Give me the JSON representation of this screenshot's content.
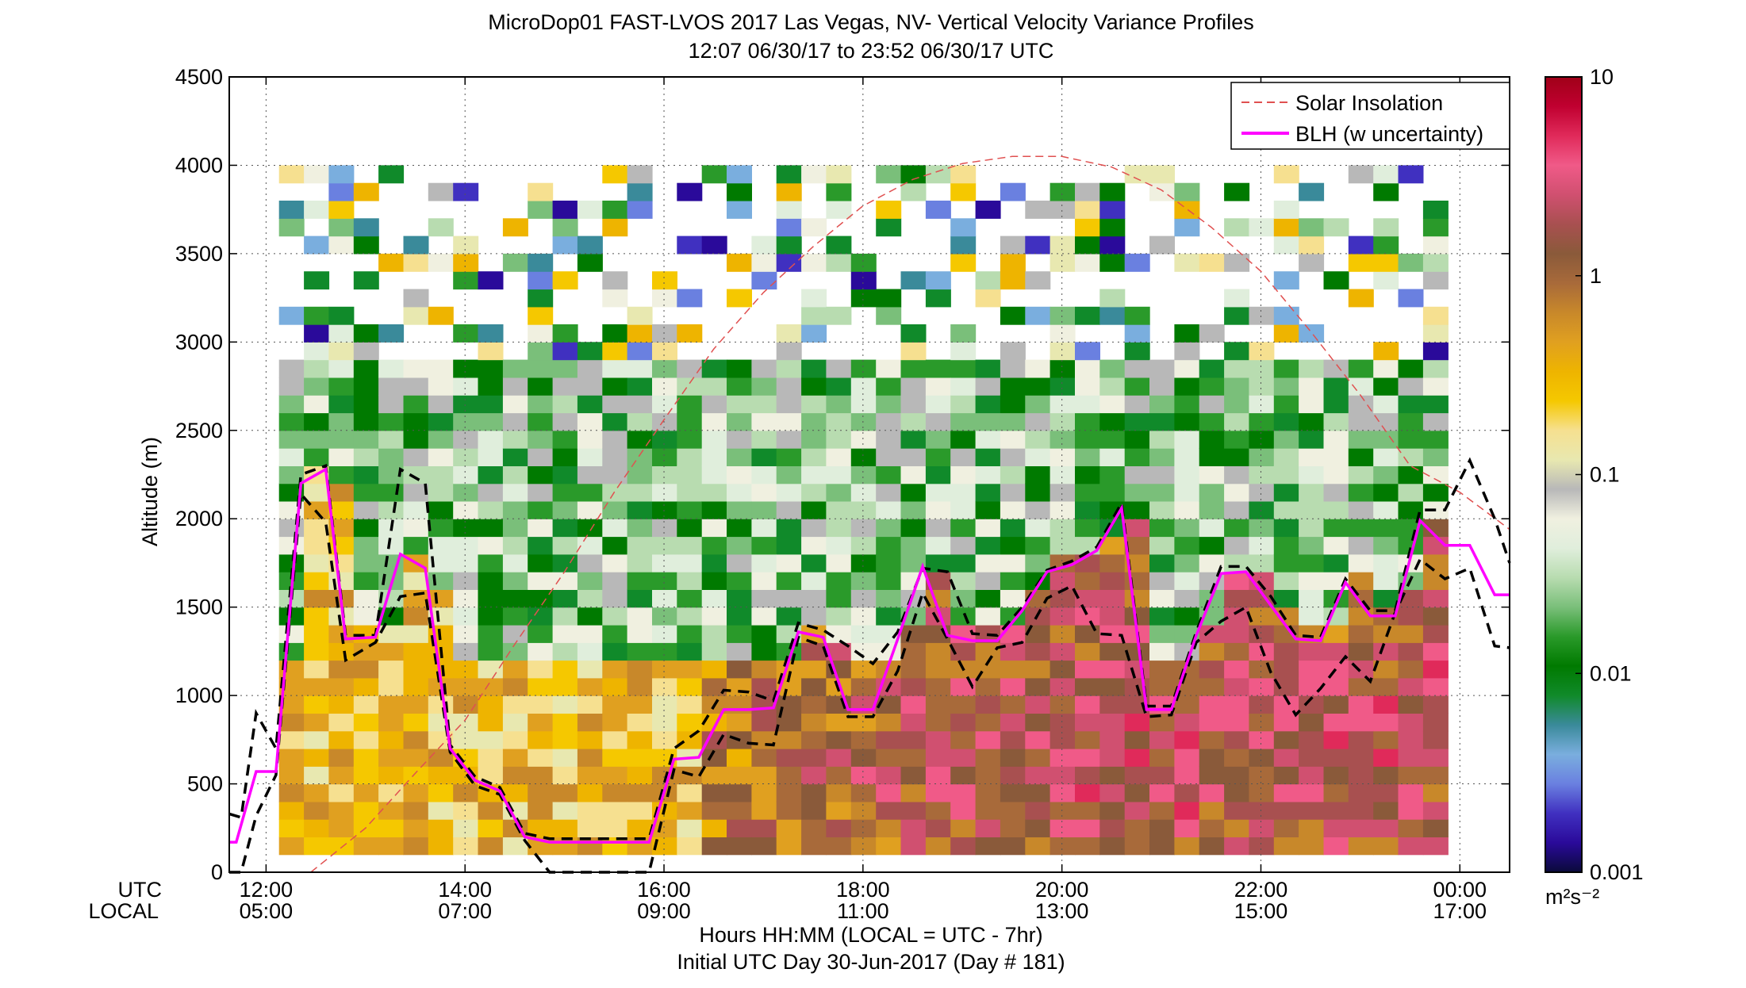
{
  "figure": {
    "title_line1": "MicroDop01 FAST-LVOS 2017 Las Vegas, NV- Vertical Velocity Variance Profiles",
    "title_line2": "12:07 06/30/17 to 23:52 06/30/17  UTC",
    "row_label_utc": "UTC",
    "row_label_local": "LOCAL",
    "xlabel": "Hours HH:MM  (LOCAL = UTC - 7hr)",
    "xlabel2": "Initial UTC Day 30-Jun-2017 (Day # 181)",
    "ylabel": "Altitude (m)",
    "colorbar_unit": "m²s⁻²"
  },
  "chart_data": {
    "type": "heatmap",
    "x_ticks_utc": [
      "12:00",
      "14:00",
      "16:00",
      "18:00",
      "20:00",
      "22:00",
      "00:00"
    ],
    "x_ticks_local": [
      "05:00",
      "07:00",
      "09:00",
      "11:00",
      "13:00",
      "15:00",
      "17:00"
    ],
    "x_tick_hours": [
      12,
      14,
      16,
      18,
      20,
      22,
      24
    ],
    "xlim_hours_utc": [
      11.63,
      24.5
    ],
    "y_ticks": [
      "0",
      "500",
      "1000",
      "1500",
      "2000",
      "2500",
      "3000",
      "3500",
      "4000",
      "4500"
    ],
    "ylim_m": [
      0,
      4500
    ],
    "colorbar": {
      "scale": "log",
      "range": [
        0.001,
        10
      ],
      "ticks": [
        "0.001",
        "0.01",
        "0.1",
        "1",
        "10"
      ],
      "colors": [
        "#0a0a3a",
        "#2a0a9a",
        "#4030c0",
        "#6a80e0",
        "#7aaede",
        "#3a8a9a",
        "#108a2a",
        "#007a00",
        "#2a9a2a",
        "#7abf7a",
        "#b8dcb0",
        "#e0eedc",
        "#f0f0e0",
        "#b8b8b8",
        "#e8e8b0",
        "#f6e090",
        "#f5c800",
        "#eeb400",
        "#e0a020",
        "#c8882a",
        "#a86a3a",
        "#8a5a3a",
        "#a85050",
        "#d05070",
        "#f05a88",
        "#e02a5a",
        "#c00030",
        "#a00018"
      ]
    },
    "legend": {
      "placement": "top-right",
      "items": [
        {
          "label": "Solar Insolation",
          "color": "#e05050",
          "style": "dashed"
        },
        {
          "label": "BLH (w uncertainty)",
          "color": "#ff00ff",
          "style": "solid"
        }
      ]
    },
    "heatmap_extent": {
      "x_start_hour": 12.13,
      "cell_hours": 0.25,
      "columns": 47,
      "y_bottom_m": 100,
      "cell_m": 100
    },
    "blh": {
      "x": [
        11.63,
        11.7,
        11.9,
        12.1,
        12.35,
        12.6,
        12.8,
        13.1,
        13.35,
        13.6,
        13.85,
        14.1,
        14.35,
        14.6,
        14.85,
        15.1,
        15.35,
        15.6,
        15.85,
        16.1,
        16.35,
        16.6,
        16.85,
        17.1,
        17.35,
        17.6,
        17.85,
        18.1,
        18.35,
        18.6,
        18.85,
        19.1,
        19.35,
        19.6,
        19.85,
        20.1,
        20.35,
        20.6,
        20.85,
        21.1,
        21.35,
        21.6,
        21.85,
        22.1,
        22.35,
        22.6,
        22.85,
        23.1,
        23.35,
        23.6,
        23.85,
        24.1,
        24.35,
        24.5
      ],
      "y": [
        170,
        170,
        570,
        570,
        2200,
        2280,
        1320,
        1330,
        1800,
        1720,
        700,
        520,
        460,
        200,
        170,
        170,
        170,
        170,
        170,
        640,
        650,
        920,
        920,
        930,
        1360,
        1330,
        920,
        920,
        1320,
        1730,
        1340,
        1310,
        1310,
        1480,
        1700,
        1740,
        1820,
        2060,
        920,
        920,
        1340,
        1690,
        1700,
        1510,
        1320,
        1310,
        1640,
        1450,
        1450,
        1990,
        1850,
        1850,
        1570,
        1570
      ]
    },
    "blh_upper": {
      "x": [
        11.63,
        11.75,
        11.9,
        12.1,
        12.35,
        12.6,
        12.8,
        13.1,
        13.35,
        13.6,
        13.85,
        14.1,
        14.35,
        14.6,
        14.85,
        15.1,
        15.35,
        15.6,
        15.85,
        16.1,
        16.35,
        16.6,
        16.85,
        17.1,
        17.35,
        17.6,
        17.85,
        18.1,
        18.35,
        18.6,
        18.85,
        19.1,
        19.35,
        19.6,
        19.85,
        20.1,
        20.35,
        20.6,
        20.85,
        21.1,
        21.35,
        21.6,
        21.85,
        22.1,
        22.35,
        22.6,
        22.85,
        23.1,
        23.35,
        23.6,
        23.85,
        24.1,
        24.35,
        24.5
      ],
      "y": [
        330,
        310,
        900,
        700,
        2250,
        2300,
        1340,
        1340,
        2280,
        2200,
        720,
        540,
        480,
        220,
        190,
        190,
        190,
        190,
        190,
        700,
        800,
        1030,
        1020,
        970,
        1410,
        1370,
        1280,
        1180,
        1360,
        1720,
        1700,
        1350,
        1340,
        1500,
        1710,
        1760,
        1840,
        2090,
        940,
        940,
        1360,
        1730,
        1730,
        1560,
        1340,
        1330,
        1660,
        1480,
        1480,
        2050,
        2050,
        2330,
        2000,
        1750
      ]
    },
    "blh_lower": {
      "x": [
        11.63,
        11.75,
        11.9,
        12.1,
        12.35,
        12.6,
        12.8,
        13.1,
        13.35,
        13.6,
        13.85,
        14.1,
        14.35,
        14.6,
        14.85,
        15.1,
        15.35,
        15.6,
        15.85,
        16.1,
        16.35,
        16.6,
        16.85,
        17.1,
        17.35,
        17.6,
        17.85,
        18.1,
        18.35,
        18.6,
        18.85,
        19.1,
        19.35,
        19.6,
        19.85,
        20.1,
        20.35,
        20.6,
        20.85,
        21.1,
        21.35,
        21.6,
        21.85,
        22.1,
        22.35,
        22.6,
        22.85,
        23.1,
        23.35,
        23.6,
        23.85,
        24.1,
        24.35,
        24.5
      ],
      "y": [
        0,
        0,
        320,
        550,
        2140,
        1980,
        1200,
        1300,
        1560,
        1580,
        680,
        490,
        440,
        180,
        0,
        0,
        0,
        0,
        0,
        580,
        540,
        780,
        730,
        720,
        1330,
        1280,
        880,
        880,
        1140,
        1580,
        1320,
        1050,
        1270,
        1300,
        1550,
        1620,
        1350,
        1340,
        880,
        890,
        1300,
        1420,
        1500,
        1130,
        890,
        1040,
        1220,
        1080,
        1470,
        1770,
        1660,
        1720,
        1280,
        1270
      ]
    },
    "solar_insolation": {
      "x": [
        12.45,
        13.0,
        13.5,
        14.0,
        14.5,
        15.0,
        15.5,
        16.0,
        16.5,
        17.0,
        17.5,
        18.0,
        18.5,
        19.0,
        19.5,
        20.0,
        20.5,
        21.0,
        21.5,
        22.0,
        22.5,
        23.0,
        23.5,
        24.0,
        24.5
      ],
      "y": [
        0,
        250,
        560,
        860,
        1290,
        1700,
        2150,
        2560,
        2960,
        3280,
        3540,
        3770,
        3920,
        4010,
        4050,
        4050,
        3990,
        3860,
        3650,
        3400,
        3060,
        2700,
        2300,
        2150,
        1940
      ]
    }
  }
}
